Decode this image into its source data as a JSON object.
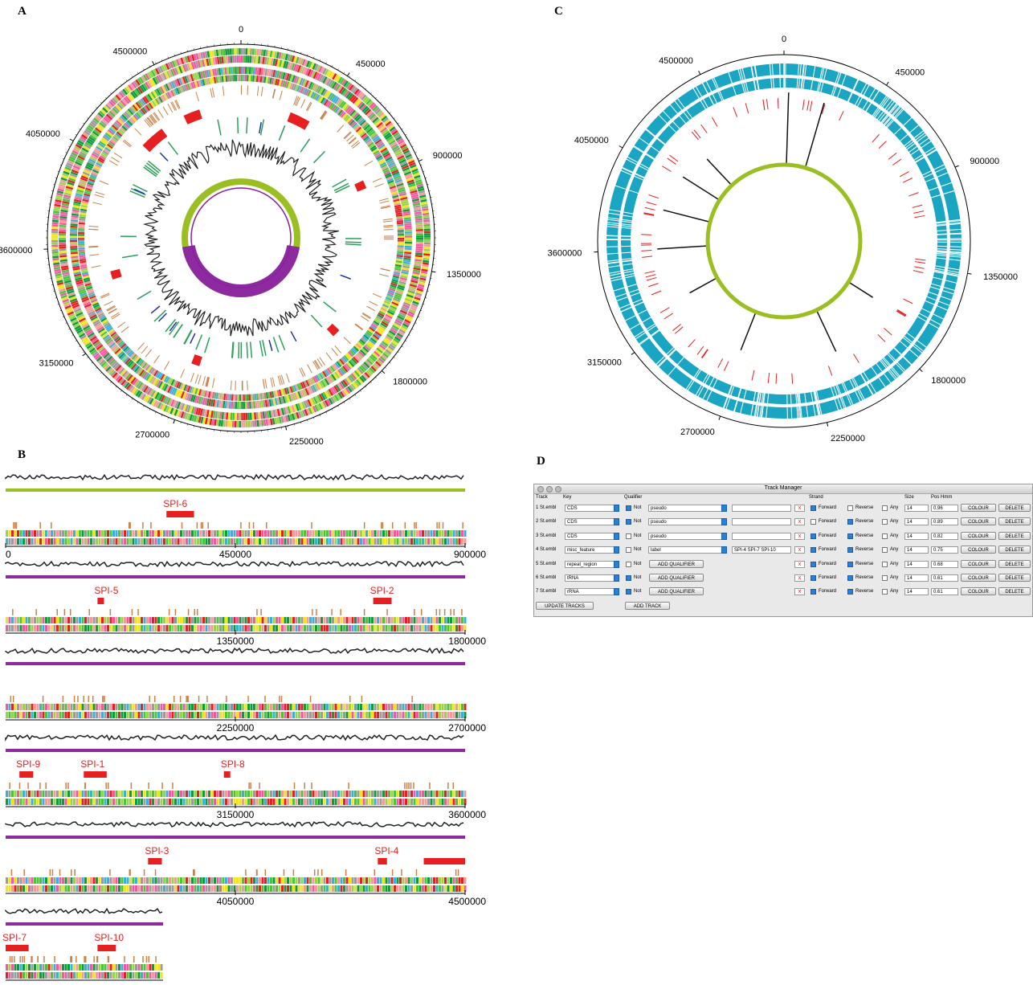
{
  "panels": {
    "a": {
      "letter": "A",
      "ticks": [
        "0",
        "450000",
        "900000",
        "1350000",
        "1800000",
        "2250000",
        "2700000",
        "3150000",
        "3600000",
        "4050000",
        "4500000"
      ]
    },
    "b": {
      "letter": "B",
      "segments": [
        {
          "start": 0,
          "tick_labels": [
            "0",
            "450000",
            "900000"
          ],
          "islands": [
            {
              "name": "SPI-6"
            }
          ]
        },
        {
          "start": 900000,
          "tick_labels": [
            "1350000",
            "1800000"
          ],
          "islands": [
            {
              "name": "SPI-5"
            },
            {
              "name": "SPI-2"
            }
          ]
        },
        {
          "start": 1800000,
          "tick_labels": [
            "2250000",
            "2700000"
          ],
          "islands": []
        },
        {
          "start": 2700000,
          "tick_labels": [
            "3150000",
            "3600000"
          ],
          "islands": [
            {
              "name": "SPI-9"
            },
            {
              "name": "SPI-1"
            },
            {
              "name": "SPI-8"
            }
          ]
        },
        {
          "start": 3600000,
          "tick_labels": [
            "4050000",
            "4500000"
          ],
          "islands": [
            {
              "name": "SPI-3"
            },
            {
              "name": "SPI-4"
            },
            {
              "name": ""
            }
          ]
        },
        {
          "start": 4500000,
          "tick_labels": [],
          "islands": [
            {
              "name": "SPI-7"
            },
            {
              "name": "SPI-10"
            }
          ]
        }
      ]
    },
    "c": {
      "letter": "C",
      "ticks": [
        "0",
        "450000",
        "900000",
        "1350000",
        "1800000",
        "2250000",
        "2700000",
        "3150000",
        "3600000",
        "4050000",
        "4500000"
      ]
    },
    "d": {
      "letter": "D",
      "window_title": "Track Manager",
      "headers": {
        "track": "Track",
        "key": "Key",
        "qualifier": "Qualifier",
        "strand": "Strand",
        "size": "Size",
        "pos": "Pos Hmm"
      },
      "rows": [
        {
          "track": "1 St.embl",
          "key": "CDS",
          "not": true,
          "not_label": "Not",
          "qualifier": "pseudo",
          "value": "",
          "forward": true,
          "reverse": false,
          "any": false,
          "size": "14",
          "pos": "0.96",
          "colour": "COLOUR",
          "delete": "DELETE"
        },
        {
          "track": "2 St.embl",
          "key": "CDS",
          "not": true,
          "not_label": "Not",
          "qualifier": "pseudo",
          "value": "",
          "forward": false,
          "reverse": true,
          "any": false,
          "size": "14",
          "pos": "0.89",
          "colour": "COLOUR",
          "delete": "DELETE"
        },
        {
          "track": "3 St.embl",
          "key": "CDS",
          "not": false,
          "not_label": "Not",
          "qualifier": "pseudo",
          "value": "",
          "forward": true,
          "reverse": true,
          "any": false,
          "size": "14",
          "pos": "0.82",
          "colour": "COLOUR",
          "delete": "DELETE"
        },
        {
          "track": "4 St.embl",
          "key": "misc_feature",
          "not": false,
          "not_label": "Not",
          "qualifier": "label",
          "value": "SPI-4 SPI-7 SPI-10",
          "forward": true,
          "reverse": true,
          "any": false,
          "size": "14",
          "pos": "0.75",
          "colour": "COLOUR",
          "delete": "DELETE"
        },
        {
          "track": "5 St.embl",
          "key": "repeat_region",
          "not": false,
          "not_label": "Not",
          "add_qualifier": "ADD QUALIFIER",
          "forward": true,
          "reverse": true,
          "any": false,
          "size": "14",
          "pos": "0.68",
          "colour": "COLOUR",
          "delete": "DELETE"
        },
        {
          "track": "6 St.embl",
          "key": "tRNA",
          "not": true,
          "not_label": "Not",
          "add_qualifier": "ADD QUALIFIER",
          "forward": true,
          "reverse": true,
          "any": false,
          "size": "14",
          "pos": "0.61",
          "colour": "COLOUR",
          "delete": "DELETE"
        },
        {
          "track": "7 St.embl",
          "key": "rRNA",
          "not": true,
          "not_label": "Not",
          "add_qualifier": "ADD QUALIFIER",
          "forward": true,
          "reverse": true,
          "any": false,
          "size": "14",
          "pos": "0.61",
          "colour": "COLOUR",
          "delete": "DELETE"
        }
      ],
      "labels": {
        "forward": "Forward",
        "reverse": "Reverse",
        "any": "Any"
      },
      "buttons": {
        "update": "UPDATE TRACKS",
        "add": "ADD TRACK"
      }
    }
  },
  "colors": {
    "cds_palette": [
      "#0f9a3c",
      "#4cc33a",
      "#9ad34a",
      "#f2e21f",
      "#f59a9a",
      "#f25aa0",
      "#e62020",
      "#9b9b9b",
      "#3ab0d8",
      "#f0a030"
    ],
    "accent": "#e62020",
    "gc": "#9bbf22",
    "skew_neg": "#8e2aa0",
    "cyan": "#1aa6c2"
  }
}
